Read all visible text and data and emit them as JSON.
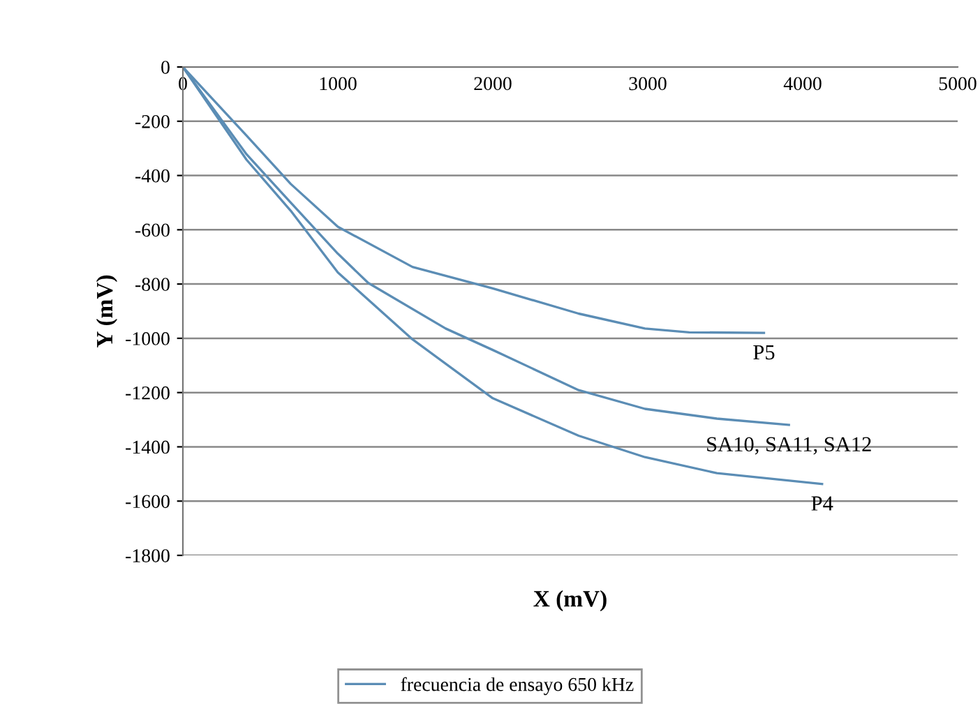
{
  "chart_data": {
    "type": "line",
    "xlabel": "X (mV)",
    "ylabel": "Y (mV)",
    "xlim": [
      0,
      5000
    ],
    "xticks": [
      0,
      1000,
      2000,
      3000,
      4000,
      5000
    ],
    "ylim": [
      -1800,
      0
    ],
    "yticks": [
      -1800,
      -1600,
      -1400,
      -1200,
      -1000,
      -800,
      -600,
      -400,
      -200,
      0
    ],
    "grid": "y",
    "legend": "bottom",
    "marker": "none",
    "line_style": "solid",
    "series": [
      {
        "name": "frecuencia de ensayo 650 kHz",
        "color": "#5b8db5",
        "x": [
          0,
          411,
          696,
          1000,
          1482,
          2000,
          2554,
          2982,
          3268,
          3750
        ],
        "values": [
          0,
          -253,
          -431,
          -589,
          -737,
          -816,
          -909,
          -964,
          -978,
          -980
        ]
      },
      {
        "color": "#5b8db5",
        "x": [
          0,
          411,
          696,
          1000,
          1196,
          1696,
          2000,
          2554,
          2982,
          3446,
          3911
        ],
        "values": [
          0,
          -322,
          -500,
          -688,
          -796,
          -964,
          -1043,
          -1191,
          -1260,
          -1296,
          -1319
        ]
      },
      {
        "color": "#5b8db5",
        "x": [
          0,
          411,
          696,
          1000,
          1482,
          2000,
          2554,
          2982,
          3446,
          4125
        ],
        "values": [
          0,
          -342,
          -530,
          -757,
          -1004,
          -1221,
          -1359,
          -1438,
          -1497,
          -1537
        ]
      }
    ],
    "annotations": [
      {
        "text": "P5",
        "x": 3750,
        "y": -980
      },
      {
        "text": "SA10, SA11, SA12",
        "x": 3911,
        "y": -1319
      },
      {
        "text": "P4",
        "x": 4125,
        "y": -1537
      }
    ]
  }
}
